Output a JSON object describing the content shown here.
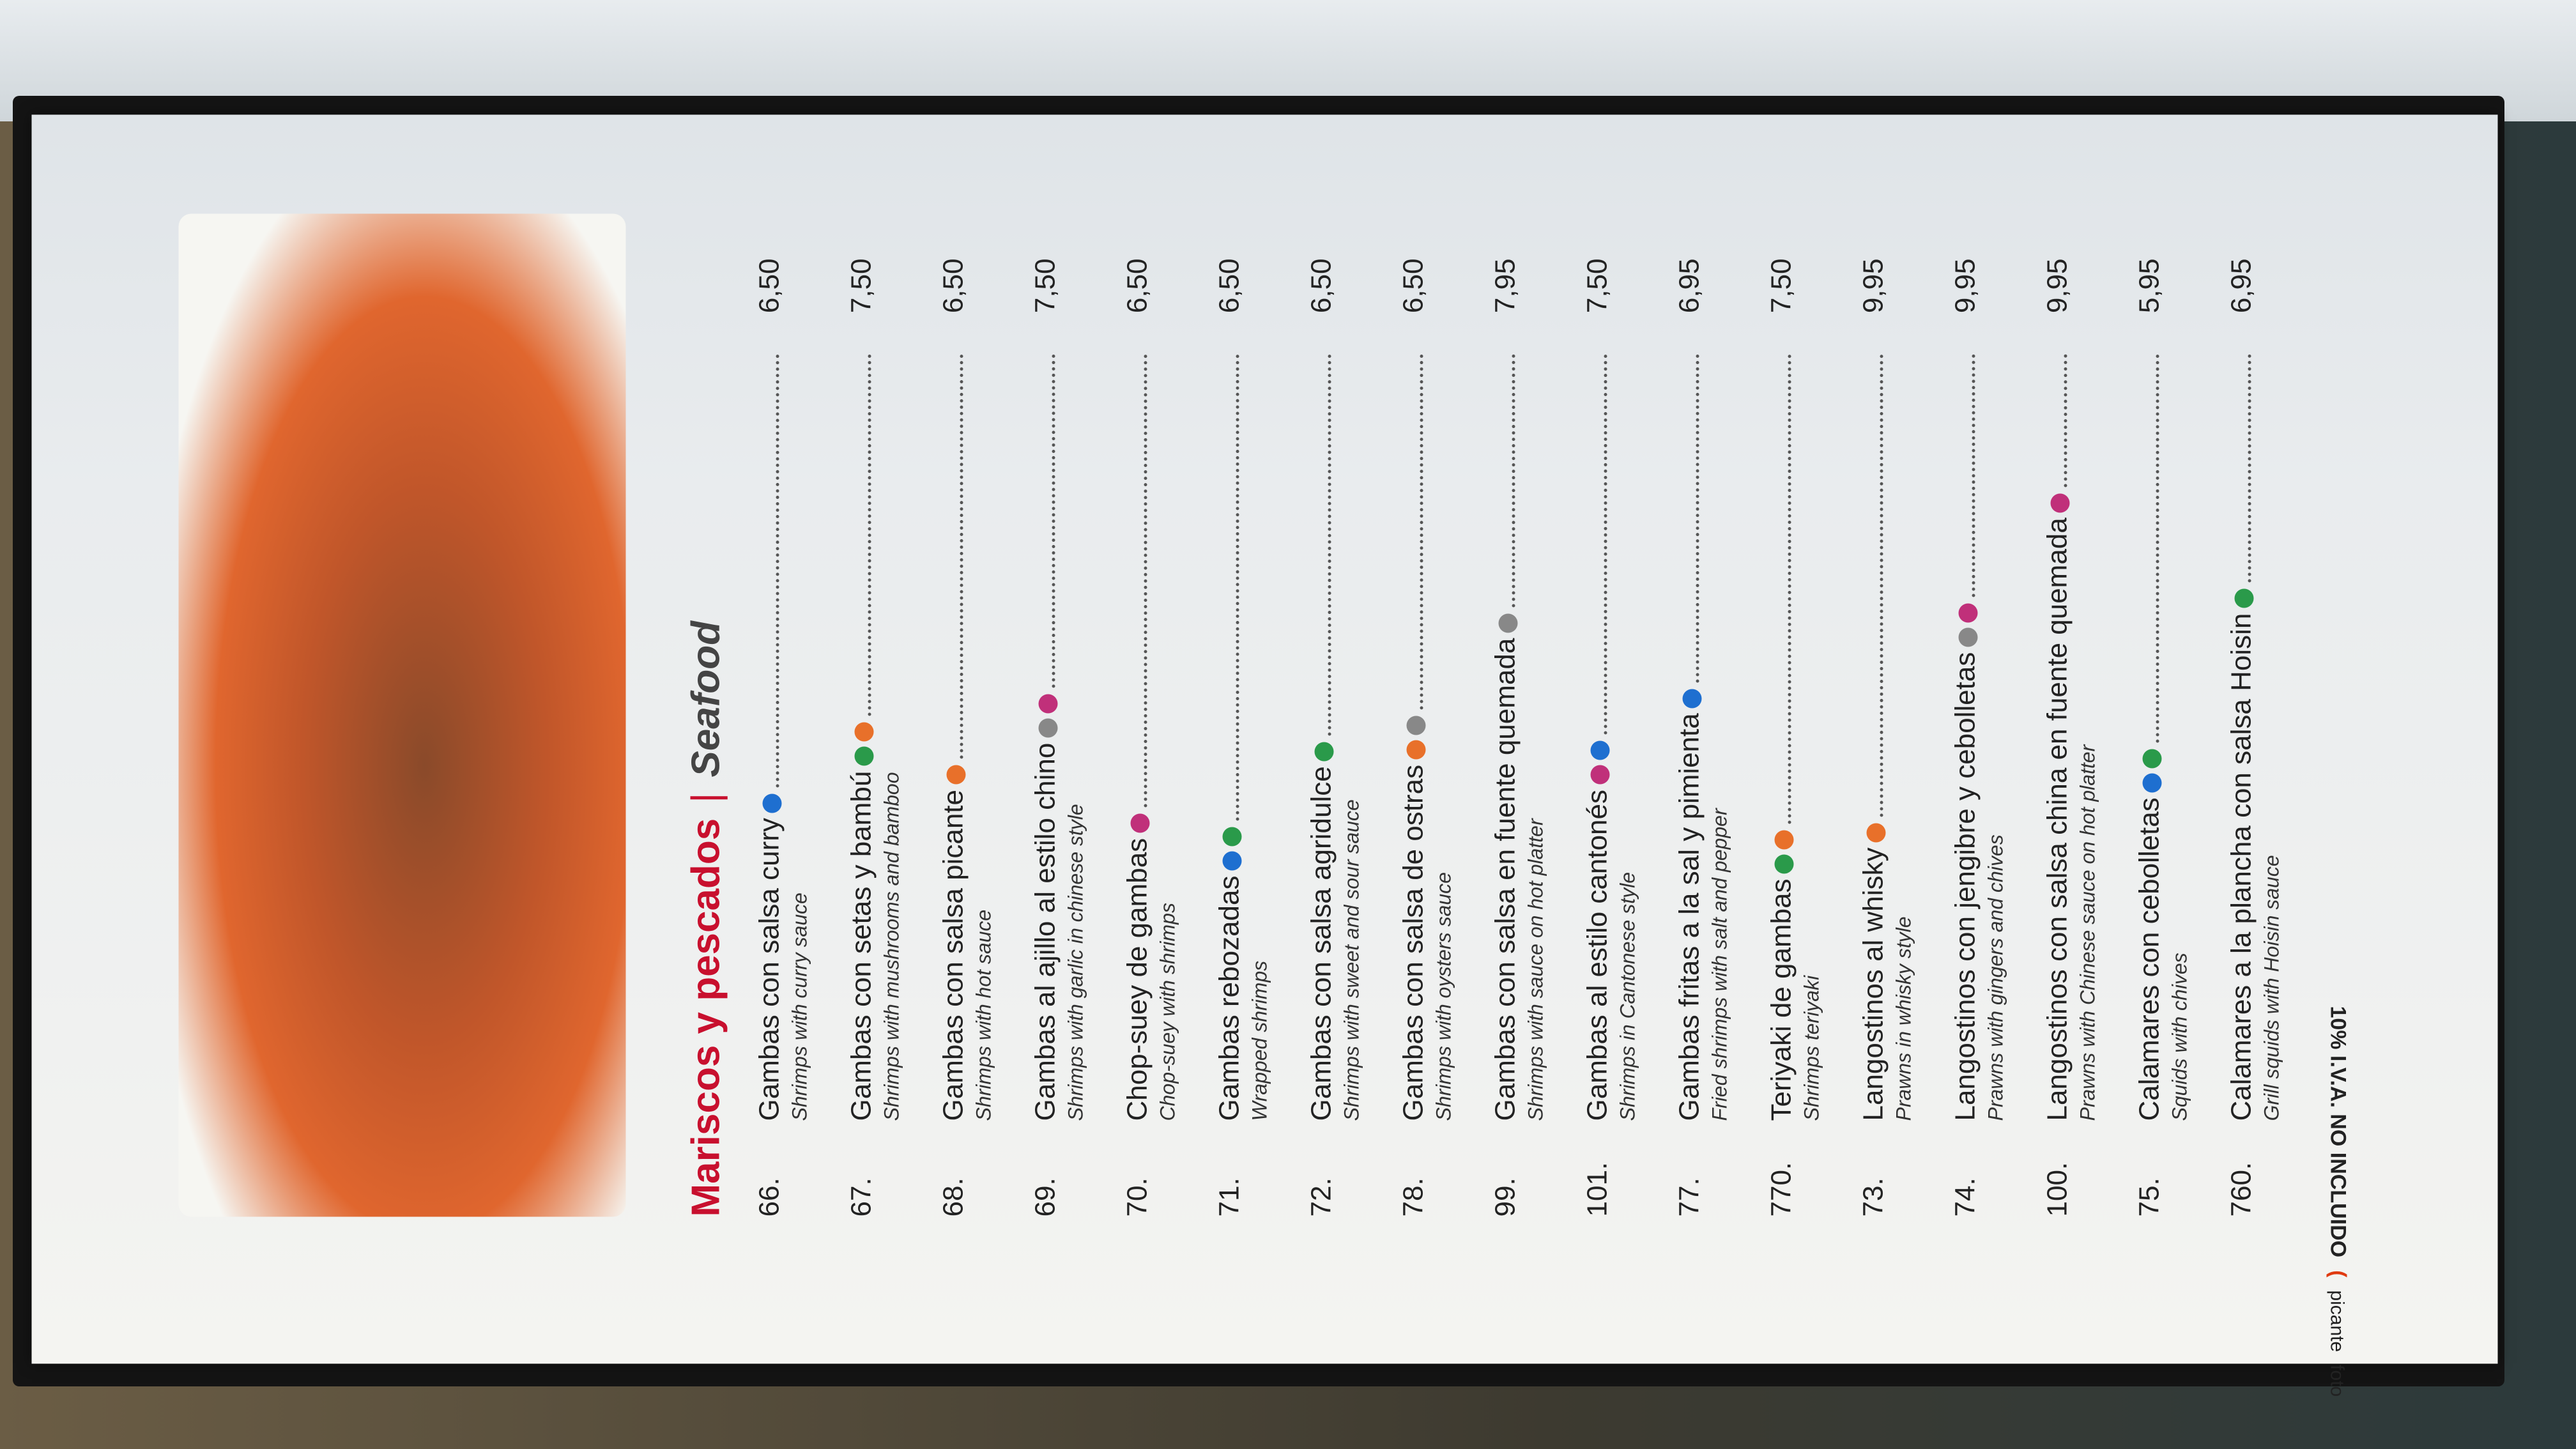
{
  "header": {
    "title": "Mariscos y pescados",
    "subtitle": "Seafood"
  },
  "items": [
    {
      "number": "66.",
      "name": "Gambas con salsa curry",
      "description": "Shrimps with curry sauce",
      "price": "6,50"
    },
    {
      "number": "67.",
      "name": "Gambas con setas y bambú",
      "description": "Shrimps with mushrooms and bamboo",
      "price": "7,50"
    },
    {
      "number": "68.",
      "name": "Gambas con salsa picante",
      "description": "Shrimps with hot sauce",
      "price": "6,50"
    },
    {
      "number": "69.",
      "name": "Gambas al ajillo al estilo chino",
      "description": "Shrimps with garlic in chinese style",
      "price": "7,50"
    },
    {
      "number": "70.",
      "name": "Chop-suey de gambas",
      "description": "Chop-suey with shrimps",
      "price": "6,50"
    },
    {
      "number": "71.",
      "name": "Gambas rebozadas",
      "description": "Wrapped shrimps",
      "price": "6,50"
    },
    {
      "number": "72.",
      "name": "Gambas con salsa agridulce",
      "description": "Shrimps with sweet and sour sauce",
      "price": "6,50"
    },
    {
      "number": "78.",
      "name": "Gambas con salsa de ostras",
      "description": "Shrimps with oysters sauce",
      "price": "6,50"
    },
    {
      "number": "99.",
      "name": "Gambas con salsa en fuente quemada",
      "description": "Shrimps with sauce on hot platter",
      "price": "7,95"
    },
    {
      "number": "101.",
      "name": "Gambas al estilo cantonés",
      "description": "Shrimps in Cantonese style",
      "price": "7,50"
    },
    {
      "number": "77.",
      "name": "Gambas fritas a la sal y pimienta",
      "description": "Fried shrimps with salt and pepper",
      "price": "6,95"
    },
    {
      "number": "770.",
      "name": "Teriyaki de gambas",
      "description": "Shrimps teriyaki",
      "price": "7,50"
    },
    {
      "number": "73.",
      "name": "Langostinos al whisky",
      "description": "Prawns in whisky style",
      "price": "9,95"
    },
    {
      "number": "74.",
      "name": "Langostinos con jengibre y cebolletas",
      "description": "Prawns with gingers and chives",
      "price": "9,95"
    },
    {
      "number": "100.",
      "name": "Langostinos con salsa china en fuente quemada",
      "description": "Prawns with Chinese sauce on hot platter",
      "price": "9,95"
    },
    {
      "number": "75.",
      "name": "Calamares con cebolletas",
      "description": "Squids with chives",
      "price": "5,95"
    },
    {
      "number": "760.",
      "name": "Calamares a la plancha con salsa Hoisin",
      "description": "Grill squids with Hoisin sauce",
      "price": "6,95"
    }
  ],
  "footer": {
    "tax": "10% I.V.A. NO INCLUIDO",
    "spicy": "picante",
    "photo": "foto"
  }
}
